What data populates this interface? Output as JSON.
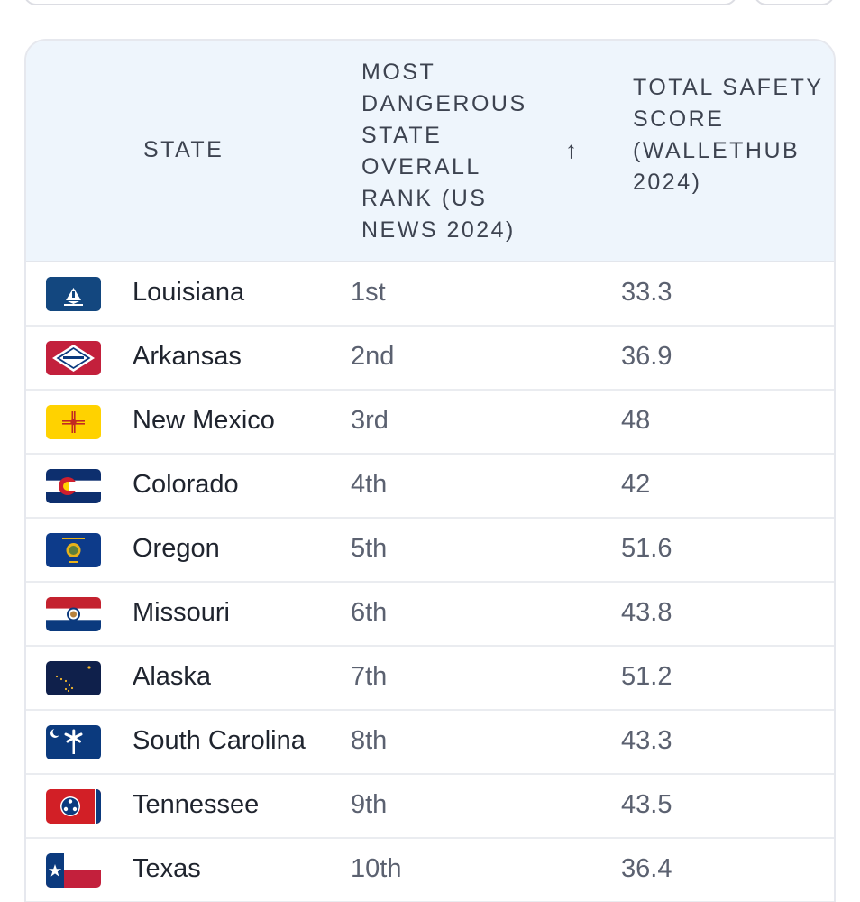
{
  "table": {
    "headers": {
      "state": "STATE",
      "rank": "MOST DANGEROUS STATE OVERALL RANK (US NEWS 2024)",
      "sort_icon": "arrow-up-icon",
      "score": "TOTAL SAFETY SCORE (WALLETHUB 2024)"
    },
    "rows": [
      {
        "state": "Louisiana",
        "rank": "1st",
        "score": "33.3",
        "flag": "louisiana-flag-icon"
      },
      {
        "state": "Arkansas",
        "rank": "2nd",
        "score": "36.9",
        "flag": "arkansas-flag-icon"
      },
      {
        "state": "New Mexico",
        "rank": "3rd",
        "score": "48",
        "flag": "new-mexico-flag-icon"
      },
      {
        "state": "Colorado",
        "rank": "4th",
        "score": "42",
        "flag": "colorado-flag-icon"
      },
      {
        "state": "Oregon",
        "rank": "5th",
        "score": "51.6",
        "flag": "oregon-flag-icon"
      },
      {
        "state": "Missouri",
        "rank": "6th",
        "score": "43.8",
        "flag": "missouri-flag-icon"
      },
      {
        "state": "Alaska",
        "rank": "7th",
        "score": "51.2",
        "flag": "alaska-flag-icon"
      },
      {
        "state": "South Carolina",
        "rank": "8th",
        "score": "43.3",
        "flag": "south-carolina-flag-icon"
      },
      {
        "state": "Tennessee",
        "rank": "9th",
        "score": "43.5",
        "flag": "tennessee-flag-icon"
      },
      {
        "state": "Texas",
        "rank": "10th",
        "score": "36.4",
        "flag": "texas-flag-icon"
      }
    ]
  }
}
